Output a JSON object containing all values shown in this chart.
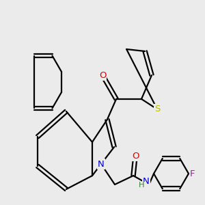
{
  "background_color": "#ebebeb",
  "atom_colors": {
    "C": "#000000",
    "N": "#0000cc",
    "O": "#dd0000",
    "S": "#bbbb00",
    "F": "#cc00cc",
    "H": "#228B22"
  },
  "bond_color": "#000000",
  "bond_width": 1.6,
  "font_size": 9.5,
  "fig_size": [
    3.0,
    3.0
  ],
  "dpi": 100,
  "scale": 10.0
}
